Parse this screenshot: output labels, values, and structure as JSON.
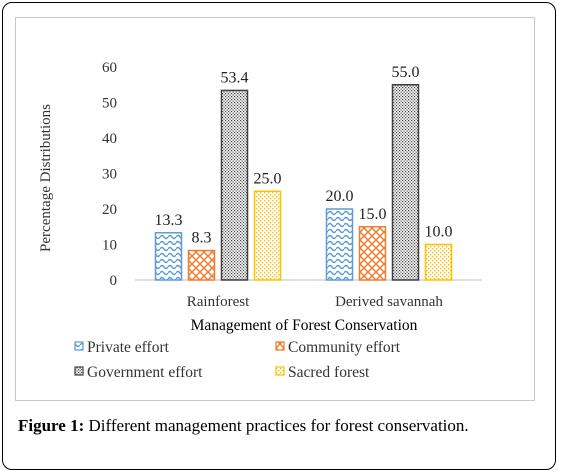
{
  "caption": {
    "label": "Figure 1:",
    "text": "Different management practices for forest conservation."
  },
  "chart_data": {
    "type": "bar",
    "title": "",
    "xlabel": "Management  of Forest Conservation",
    "ylabel": "Percentage  Distributions",
    "ylim": [
      0,
      60
    ],
    "yticks": [
      0,
      10,
      20,
      30,
      40,
      50,
      60
    ],
    "grid": false,
    "legend_position": "bottom",
    "categories": [
      "Rainforest",
      "Derived savannah"
    ],
    "series": [
      {
        "name": "Private effort",
        "values": [
          13.3,
          20.0
        ],
        "labels": [
          "13.3",
          "20.0"
        ],
        "color": "#5b9bd5",
        "pattern": "waves"
      },
      {
        "name": "Community effort",
        "values": [
          8.3,
          15.0
        ],
        "labels": [
          "8.3",
          "15.0"
        ],
        "color": "#ed7d31",
        "pattern": "diamonds"
      },
      {
        "name": "Government effort",
        "values": [
          53.4,
          55.0
        ],
        "labels": [
          "53.4",
          "55.0"
        ],
        "color": "#404040",
        "pattern": "dots"
      },
      {
        "name": "Sacred forest",
        "values": [
          25.0,
          10.0
        ],
        "labels": [
          "25.0",
          "10.0"
        ],
        "color": "#ffc000",
        "pattern": "dots"
      }
    ]
  }
}
